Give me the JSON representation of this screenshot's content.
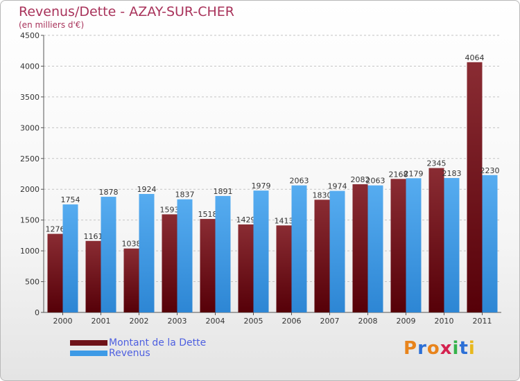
{
  "title": "Revenus/Dette - AZAY-SUR-CHER",
  "subtitle": "(en milliers d'€)",
  "logo": {
    "letters": [
      "P",
      "r",
      "o",
      "x",
      "i",
      "t",
      "i"
    ],
    "colors": [
      "#e8841c",
      "#2b6fd6",
      "#e8841c",
      "#d4224f",
      "#35b24a",
      "#2b6fd6",
      "#e8b81c"
    ]
  },
  "colors": {
    "dette": "#6e1218",
    "revenus": "#3d9ae6",
    "title": "#a8325a",
    "legend_text": "#4d5fe0"
  },
  "chart_data": {
    "type": "bar",
    "title": "Revenus/Dette - AZAY-SUR-CHER",
    "subtitle": "(en milliers d'€)",
    "categories": [
      "2000",
      "2001",
      "2002",
      "2003",
      "2004",
      "2005",
      "2006",
      "2007",
      "2008",
      "2009",
      "2010",
      "2011"
    ],
    "series": [
      {
        "name": "Montant de la Dette",
        "values": [
          1276,
          1161,
          1038,
          1593,
          1518,
          1429,
          1413,
          1830,
          2082,
          2168,
          2345,
          4064
        ]
      },
      {
        "name": "Revenus",
        "values": [
          1754,
          1878,
          1924,
          1837,
          1891,
          1979,
          2063,
          1974,
          2063,
          2179,
          2183,
          2230
        ]
      }
    ],
    "ylim": [
      0,
      4500
    ],
    "yticks": [
      0,
      500,
      1000,
      1500,
      2000,
      2500,
      3000,
      3500,
      4000,
      4500
    ],
    "grid": "horizontal dashed",
    "legend_position": "bottom-left"
  }
}
